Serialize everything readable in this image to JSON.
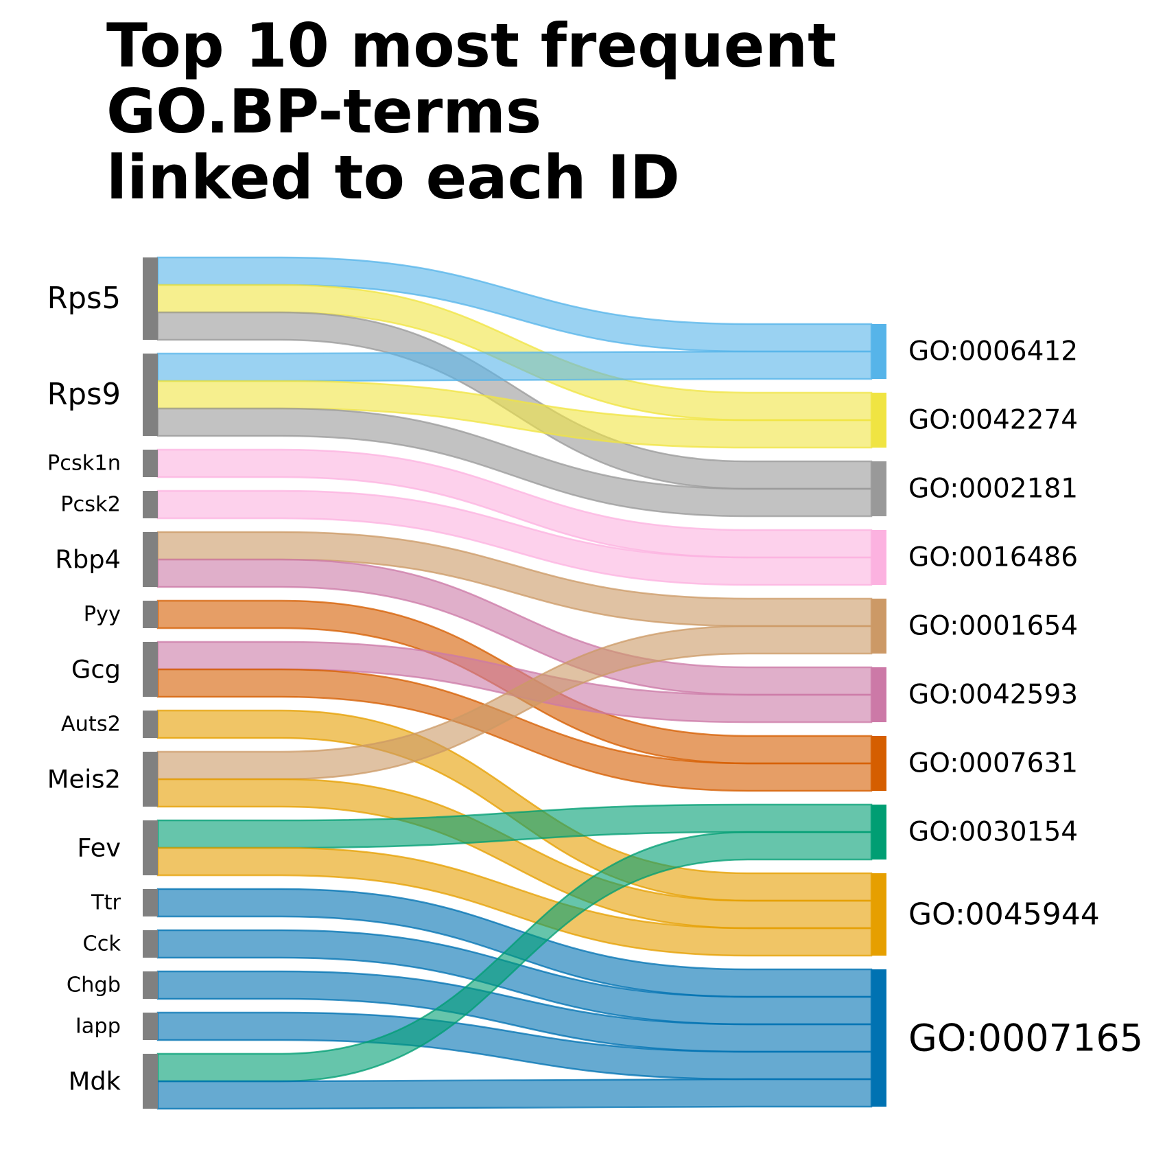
{
  "title": [
    "Top 10 most frequent",
    "GO.BP-terms",
    "linked to each ID"
  ],
  "source_node_color": "#808080",
  "sources": [
    "Rps5",
    "Rps9",
    "Pcsk1n",
    "Pcsk2",
    "Rbp4",
    "Pyy",
    "Gcg",
    "Auts2",
    "Meis2",
    "Fev",
    "Ttr",
    "Cck",
    "Chgb",
    "Iapp",
    "Mdk"
  ],
  "targets": [
    {
      "id": "GO:0006412",
      "color": "#56B4E9"
    },
    {
      "id": "GO:0042274",
      "color": "#F0E442"
    },
    {
      "id": "GO:0002181",
      "color": "#999999"
    },
    {
      "id": "GO:0016486",
      "color": "#FCB2E0"
    },
    {
      "id": "GO:0001654",
      "color": "#CC9966"
    },
    {
      "id": "GO:0042593",
      "color": "#CC79A7"
    },
    {
      "id": "GO:0007631",
      "color": "#D55E00"
    },
    {
      "id": "GO:0030154",
      "color": "#009E73"
    },
    {
      "id": "GO:0045944",
      "color": "#E69F00"
    },
    {
      "id": "GO:0007165",
      "color": "#0072B2"
    }
  ],
  "links": [
    {
      "source": "Rps5",
      "target": "GO:0006412",
      "value": 1
    },
    {
      "source": "Rps5",
      "target": "GO:0042274",
      "value": 1
    },
    {
      "source": "Rps5",
      "target": "GO:0002181",
      "value": 1
    },
    {
      "source": "Rps9",
      "target": "GO:0006412",
      "value": 1
    },
    {
      "source": "Rps9",
      "target": "GO:0042274",
      "value": 1
    },
    {
      "source": "Rps9",
      "target": "GO:0002181",
      "value": 1
    },
    {
      "source": "Pcsk1n",
      "target": "GO:0016486",
      "value": 1
    },
    {
      "source": "Pcsk2",
      "target": "GO:0016486",
      "value": 1
    },
    {
      "source": "Rbp4",
      "target": "GO:0001654",
      "value": 1
    },
    {
      "source": "Rbp4",
      "target": "GO:0042593",
      "value": 1
    },
    {
      "source": "Pyy",
      "target": "GO:0007631",
      "value": 1
    },
    {
      "source": "Gcg",
      "target": "GO:0042593",
      "value": 1
    },
    {
      "source": "Gcg",
      "target": "GO:0007631",
      "value": 1
    },
    {
      "source": "Auts2",
      "target": "GO:0045944",
      "value": 1
    },
    {
      "source": "Meis2",
      "target": "GO:0001654",
      "value": 1
    },
    {
      "source": "Meis2",
      "target": "GO:0045944",
      "value": 1
    },
    {
      "source": "Fev",
      "target": "GO:0030154",
      "value": 1
    },
    {
      "source": "Fev",
      "target": "GO:0045944",
      "value": 1
    },
    {
      "source": "Ttr",
      "target": "GO:0007165",
      "value": 1
    },
    {
      "source": "Cck",
      "target": "GO:0007165",
      "value": 1
    },
    {
      "source": "Chgb",
      "target": "GO:0007165",
      "value": 1
    },
    {
      "source": "Iapp",
      "target": "GO:0007165",
      "value": 1
    },
    {
      "source": "Mdk",
      "target": "GO:0030154",
      "value": 1
    },
    {
      "source": "Mdk",
      "target": "GO:0007165",
      "value": 1
    }
  ]
}
